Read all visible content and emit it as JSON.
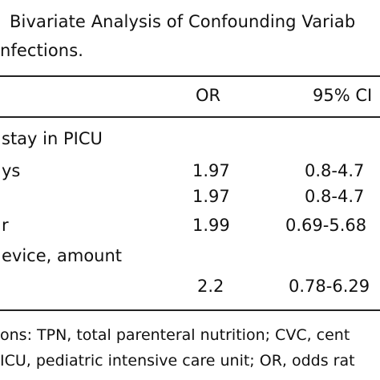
{
  "caption": {
    "line1": "Bivariate Analysis of Confounding Variab",
    "line2": "nfections."
  },
  "table": {
    "header": {
      "or": "OR",
      "ci": "95% CI"
    },
    "rows": [
      {
        "label": "stay in PICU",
        "or": "",
        "ci": ""
      },
      {
        "label": "ys",
        "or": "1.97",
        "ci": "0.8-4.7"
      },
      {
        "label": "",
        "or": "1.97",
        "ci": "0.8-4.7"
      },
      {
        "label": "r",
        "or": "1.99",
        "ci": "0.69-5.68"
      },
      {
        "label": "evice, amount",
        "or": "",
        "ci": ""
      },
      {
        "label": "",
        "or": "2.2",
        "ci": "0.78-6.29"
      }
    ]
  },
  "footnote": {
    "line1": "ons: TPN, total parenteral nutrition; CVC, cent",
    "line2": "ICU, pediatric intensive care unit; OR, odds rat"
  }
}
